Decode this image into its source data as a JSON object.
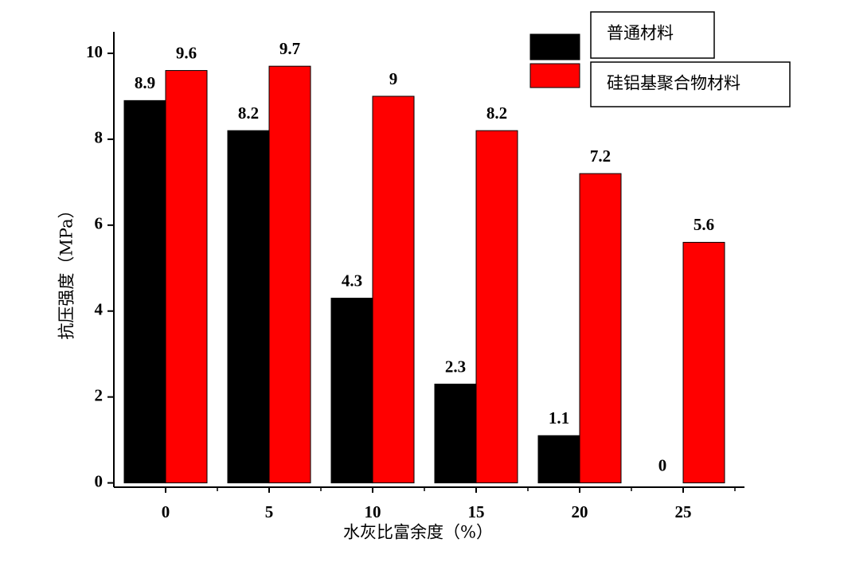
{
  "chart_data": {
    "type": "bar",
    "x_label": "水灰比富余度（%）",
    "y_label": "抗压强度（MPa）",
    "categories": [
      "0",
      "5",
      "10",
      "15",
      "20",
      "25"
    ],
    "series": [
      {
        "name": "普通材料",
        "color": "#000000",
        "values": [
          8.9,
          8.2,
          4.3,
          2.3,
          1.1,
          0
        ]
      },
      {
        "name": "硅铝基聚合物材料",
        "color": "#ff0000",
        "values": [
          9.6,
          9.7,
          9,
          8.2,
          7.2,
          5.6
        ]
      }
    ],
    "ylim": [
      -0.1,
      10.5
    ],
    "yticks": [
      0,
      2,
      4,
      6,
      8,
      10
    ],
    "legend": "top-right"
  }
}
